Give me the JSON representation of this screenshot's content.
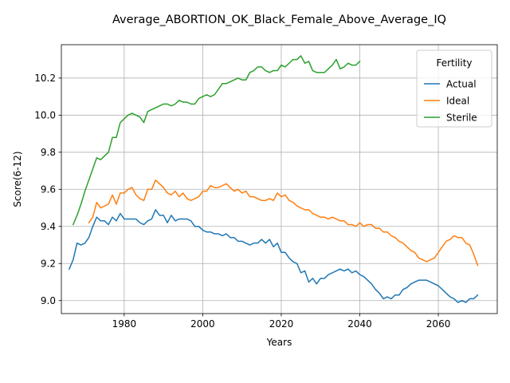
{
  "chart_data": {
    "type": "line",
    "title": "Average_ABORTION_OK_Black_Female_Above_Average_IQ",
    "xlabel": "Years",
    "ylabel": "Score(6-12)",
    "xlim": [
      1964,
      2075
    ],
    "ylim": [
      8.93,
      10.38
    ],
    "xticks": [
      1980,
      2000,
      2020,
      2040,
      2060
    ],
    "yticks": [
      9.0,
      9.2,
      9.4,
      9.6,
      9.8,
      10.0,
      10.2
    ],
    "grid": true,
    "legend": {
      "title": "Fertility",
      "position": "top-right"
    },
    "series": [
      {
        "name": "Actual",
        "color": "#1f77b4",
        "points": [
          [
            1966,
            9.17
          ],
          [
            1967,
            9.22
          ],
          [
            1968,
            9.31
          ],
          [
            1969,
            9.3
          ],
          [
            1970,
            9.31
          ],
          [
            1971,
            9.34
          ],
          [
            1972,
            9.4
          ],
          [
            1973,
            9.45
          ],
          [
            1974,
            9.43
          ],
          [
            1975,
            9.43
          ],
          [
            1976,
            9.41
          ],
          [
            1977,
            9.45
          ],
          [
            1978,
            9.43
          ],
          [
            1979,
            9.47
          ],
          [
            1980,
            9.44
          ],
          [
            1981,
            9.44
          ],
          [
            1982,
            9.44
          ],
          [
            1983,
            9.44
          ],
          [
            1984,
            9.42
          ],
          [
            1985,
            9.41
          ],
          [
            1986,
            9.43
          ],
          [
            1987,
            9.44
          ],
          [
            1988,
            9.49
          ],
          [
            1989,
            9.46
          ],
          [
            1990,
            9.46
          ],
          [
            1991,
            9.42
          ],
          [
            1992,
            9.46
          ],
          [
            1993,
            9.43
          ],
          [
            1994,
            9.44
          ],
          [
            1995,
            9.44
          ],
          [
            1996,
            9.44
          ],
          [
            1997,
            9.43
          ],
          [
            1998,
            9.4
          ],
          [
            1999,
            9.4
          ],
          [
            2000,
            9.38
          ],
          [
            2001,
            9.37
          ],
          [
            2002,
            9.37
          ],
          [
            2003,
            9.36
          ],
          [
            2004,
            9.36
          ],
          [
            2005,
            9.35
          ],
          [
            2006,
            9.36
          ],
          [
            2007,
            9.34
          ],
          [
            2008,
            9.34
          ],
          [
            2009,
            9.32
          ],
          [
            2010,
            9.32
          ],
          [
            2011,
            9.31
          ],
          [
            2012,
            9.3
          ],
          [
            2013,
            9.31
          ],
          [
            2014,
            9.31
          ],
          [
            2015,
            9.33
          ],
          [
            2016,
            9.31
          ],
          [
            2017,
            9.33
          ],
          [
            2018,
            9.29
          ],
          [
            2019,
            9.31
          ],
          [
            2020,
            9.26
          ],
          [
            2021,
            9.26
          ],
          [
            2022,
            9.23
          ],
          [
            2023,
            9.21
          ],
          [
            2024,
            9.2
          ],
          [
            2025,
            9.15
          ],
          [
            2026,
            9.16
          ],
          [
            2027,
            9.1
          ],
          [
            2028,
            9.12
          ],
          [
            2029,
            9.09
          ],
          [
            2030,
            9.12
          ],
          [
            2031,
            9.12
          ],
          [
            2032,
            9.14
          ],
          [
            2033,
            9.15
          ],
          [
            2034,
            9.16
          ],
          [
            2035,
            9.17
          ],
          [
            2036,
            9.16
          ],
          [
            2037,
            9.17
          ],
          [
            2038,
            9.15
          ],
          [
            2039,
            9.16
          ],
          [
            2040,
            9.14
          ],
          [
            2041,
            9.13
          ],
          [
            2042,
            9.11
          ],
          [
            2043,
            9.09
          ],
          [
            2044,
            9.06
          ],
          [
            2045,
            9.04
          ],
          [
            2046,
            9.01
          ],
          [
            2047,
            9.02
          ],
          [
            2048,
            9.01
          ],
          [
            2049,
            9.03
          ],
          [
            2050,
            9.03
          ],
          [
            2051,
            9.06
          ],
          [
            2052,
            9.07
          ],
          [
            2053,
            9.09
          ],
          [
            2054,
            9.1
          ],
          [
            2055,
            9.11
          ],
          [
            2056,
            9.11
          ],
          [
            2057,
            9.11
          ],
          [
            2058,
            9.1
          ],
          [
            2059,
            9.09
          ],
          [
            2060,
            9.08
          ],
          [
            2061,
            9.06
          ],
          [
            2062,
            9.04
          ],
          [
            2063,
            9.02
          ],
          [
            2064,
            9.01
          ],
          [
            2065,
            8.99
          ],
          [
            2066,
            9.0
          ],
          [
            2067,
            8.99
          ],
          [
            2068,
            9.01
          ],
          [
            2069,
            9.01
          ],
          [
            2070,
            9.03
          ]
        ]
      },
      {
        "name": "Ideal",
        "color": "#ff7f0e",
        "points": [
          [
            1971,
            9.42
          ],
          [
            1972,
            9.45
          ],
          [
            1973,
            9.53
          ],
          [
            1974,
            9.5
          ],
          [
            1975,
            9.51
          ],
          [
            1976,
            9.52
          ],
          [
            1977,
            9.57
          ],
          [
            1978,
            9.52
          ],
          [
            1979,
            9.58
          ],
          [
            1980,
            9.58
          ],
          [
            1981,
            9.6
          ],
          [
            1982,
            9.61
          ],
          [
            1983,
            9.57
          ],
          [
            1984,
            9.55
          ],
          [
            1985,
            9.54
          ],
          [
            1986,
            9.6
          ],
          [
            1987,
            9.6
          ],
          [
            1988,
            9.65
          ],
          [
            1989,
            9.63
          ],
          [
            1990,
            9.61
          ],
          [
            1991,
            9.58
          ],
          [
            1992,
            9.57
          ],
          [
            1993,
            9.59
          ],
          [
            1994,
            9.56
          ],
          [
            1995,
            9.58
          ],
          [
            1996,
            9.55
          ],
          [
            1997,
            9.54
          ],
          [
            1998,
            9.55
          ],
          [
            1999,
            9.56
          ],
          [
            2000,
            9.59
          ],
          [
            2001,
            9.59
          ],
          [
            2002,
            9.62
          ],
          [
            2003,
            9.61
          ],
          [
            2004,
            9.61
          ],
          [
            2005,
            9.62
          ],
          [
            2006,
            9.63
          ],
          [
            2007,
            9.61
          ],
          [
            2008,
            9.59
          ],
          [
            2009,
            9.6
          ],
          [
            2010,
            9.58
          ],
          [
            2011,
            9.59
          ],
          [
            2012,
            9.56
          ],
          [
            2013,
            9.56
          ],
          [
            2014,
            9.55
          ],
          [
            2015,
            9.54
          ],
          [
            2016,
            9.54
          ],
          [
            2017,
            9.55
          ],
          [
            2018,
            9.54
          ],
          [
            2019,
            9.58
          ],
          [
            2020,
            9.56
          ],
          [
            2021,
            9.57
          ],
          [
            2022,
            9.54
          ],
          [
            2023,
            9.53
          ],
          [
            2024,
            9.51
          ],
          [
            2025,
            9.5
          ],
          [
            2026,
            9.49
          ],
          [
            2027,
            9.49
          ],
          [
            2028,
            9.47
          ],
          [
            2029,
            9.46
          ],
          [
            2030,
            9.45
          ],
          [
            2031,
            9.45
          ],
          [
            2032,
            9.44
          ],
          [
            2033,
            9.45
          ],
          [
            2034,
            9.44
          ],
          [
            2035,
            9.43
          ],
          [
            2036,
            9.43
          ],
          [
            2037,
            9.41
          ],
          [
            2038,
            9.41
          ],
          [
            2039,
            9.4
          ],
          [
            2040,
            9.42
          ],
          [
            2041,
            9.4
          ],
          [
            2042,
            9.41
          ],
          [
            2043,
            9.41
          ],
          [
            2044,
            9.39
          ],
          [
            2045,
            9.39
          ],
          [
            2046,
            9.37
          ],
          [
            2047,
            9.37
          ],
          [
            2048,
            9.35
          ],
          [
            2049,
            9.34
          ],
          [
            2050,
            9.32
          ],
          [
            2051,
            9.31
          ],
          [
            2052,
            9.29
          ],
          [
            2053,
            9.27
          ],
          [
            2054,
            9.26
          ],
          [
            2055,
            9.23
          ],
          [
            2056,
            9.22
          ],
          [
            2057,
            9.21
          ],
          [
            2058,
            9.22
          ],
          [
            2059,
            9.23
          ],
          [
            2060,
            9.26
          ],
          [
            2061,
            9.29
          ],
          [
            2062,
            9.32
          ],
          [
            2063,
            9.33
          ],
          [
            2064,
            9.35
          ],
          [
            2065,
            9.34
          ],
          [
            2066,
            9.34
          ],
          [
            2067,
            9.31
          ],
          [
            2068,
            9.3
          ],
          [
            2069,
            9.25
          ],
          [
            2070,
            9.19
          ]
        ]
      },
      {
        "name": "Sterile",
        "color": "#2ca02c",
        "points": [
          [
            1967,
            9.41
          ],
          [
            1968,
            9.46
          ],
          [
            1969,
            9.52
          ],
          [
            1970,
            9.59
          ],
          [
            1971,
            9.65
          ],
          [
            1972,
            9.71
          ],
          [
            1973,
            9.77
          ],
          [
            1974,
            9.76
          ],
          [
            1975,
            9.78
          ],
          [
            1976,
            9.8
          ],
          [
            1977,
            9.88
          ],
          [
            1978,
            9.88
          ],
          [
            1979,
            9.96
          ],
          [
            1980,
            9.98
          ],
          [
            1981,
            10.0
          ],
          [
            1982,
            10.01
          ],
          [
            1983,
            10.0
          ],
          [
            1984,
            9.99
          ],
          [
            1985,
            9.96
          ],
          [
            1986,
            10.02
          ],
          [
            1987,
            10.03
          ],
          [
            1988,
            10.04
          ],
          [
            1989,
            10.05
          ],
          [
            1990,
            10.06
          ],
          [
            1991,
            10.06
          ],
          [
            1992,
            10.05
          ],
          [
            1993,
            10.06
          ],
          [
            1994,
            10.08
          ],
          [
            1995,
            10.07
          ],
          [
            1996,
            10.07
          ],
          [
            1997,
            10.06
          ],
          [
            1998,
            10.06
          ],
          [
            1999,
            10.09
          ],
          [
            2000,
            10.1
          ],
          [
            2001,
            10.11
          ],
          [
            2002,
            10.1
          ],
          [
            2003,
            10.11
          ],
          [
            2004,
            10.14
          ],
          [
            2005,
            10.17
          ],
          [
            2006,
            10.17
          ],
          [
            2007,
            10.18
          ],
          [
            2008,
            10.19
          ],
          [
            2009,
            10.2
          ],
          [
            2010,
            10.19
          ],
          [
            2011,
            10.19
          ],
          [
            2012,
            10.23
          ],
          [
            2013,
            10.24
          ],
          [
            2014,
            10.26
          ],
          [
            2015,
            10.26
          ],
          [
            2016,
            10.24
          ],
          [
            2017,
            10.23
          ],
          [
            2018,
            10.24
          ],
          [
            2019,
            10.24
          ],
          [
            2020,
            10.27
          ],
          [
            2021,
            10.26
          ],
          [
            2022,
            10.28
          ],
          [
            2023,
            10.3
          ],
          [
            2024,
            10.3
          ],
          [
            2025,
            10.32
          ],
          [
            2026,
            10.28
          ],
          [
            2027,
            10.29
          ],
          [
            2028,
            10.24
          ],
          [
            2029,
            10.23
          ],
          [
            2030,
            10.23
          ],
          [
            2031,
            10.23
          ],
          [
            2032,
            10.25
          ],
          [
            2033,
            10.27
          ],
          [
            2034,
            10.3
          ],
          [
            2035,
            10.25
          ],
          [
            2036,
            10.26
          ],
          [
            2037,
            10.28
          ],
          [
            2038,
            10.27
          ],
          [
            2039,
            10.27
          ],
          [
            2040,
            10.29
          ]
        ]
      }
    ]
  }
}
